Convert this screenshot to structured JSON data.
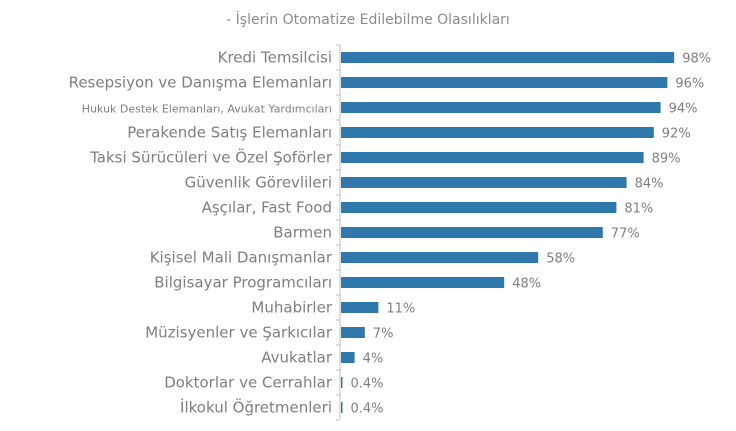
{
  "chart_data": {
    "type": "bar",
    "orientation": "horizontal",
    "title": "- İşlerin Otomatize Edilebilme Olasılıkları",
    "xlabel": "",
    "ylabel": "",
    "xlim": [
      0,
      100
    ],
    "grid": false,
    "legend": "none",
    "bar_color": "#2e78ac",
    "categories": [
      "Kredi Temsilcisi",
      "Resepsiyon ve Danışma Elemanları",
      "Hukuk Destek Elemanları, Avukat Yardımcıları",
      "Perakende Satış Elemanları",
      "Taksi Sürücüleri ve Özel Şoförler",
      "Güvenlik Görevlileri",
      "Aşçılar, Fast Food",
      "Barmen",
      "Kişisel Mali Danışmanlar",
      "Bilgisayar Programcıları",
      "Muhabirler",
      "Müzisyenler ve Şarkıcılar",
      "Avukatlar",
      "Doktorlar ve Cerrahlar",
      "İlkokul Öğretmenleri"
    ],
    "values": [
      98,
      96,
      94,
      92,
      89,
      84,
      81,
      77,
      58,
      48,
      11,
      7,
      4,
      0.4,
      0.4
    ],
    "value_labels": [
      "98%",
      "96%",
      "94%",
      "92%",
      "89%",
      "84%",
      "81%",
      "77%",
      "58%",
      "48%",
      "11%",
      "7%",
      "4%",
      "0.4%",
      "0.4%"
    ]
  }
}
